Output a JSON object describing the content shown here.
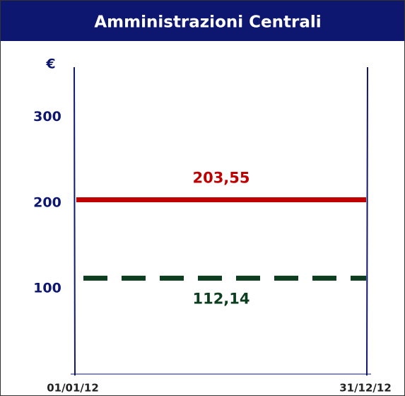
{
  "chart_data": {
    "type": "line",
    "title": "Amministrazioni Centrali",
    "y_unit": "€",
    "categories": [
      "01/01/12",
      "31/12/12"
    ],
    "series": [
      {
        "color": "#c00000",
        "dashed": false,
        "values": [
          203.55,
          203.55
        ],
        "label": "203,55",
        "label_position": "above"
      },
      {
        "color": "#0b3d1e",
        "dashed": true,
        "values": [
          112.14,
          112.14
        ],
        "label": "112,14",
        "label_position": "below"
      }
    ],
    "ylim": [
      0,
      358
    ],
    "yticks": [
      100,
      200,
      300
    ],
    "grid": false
  }
}
